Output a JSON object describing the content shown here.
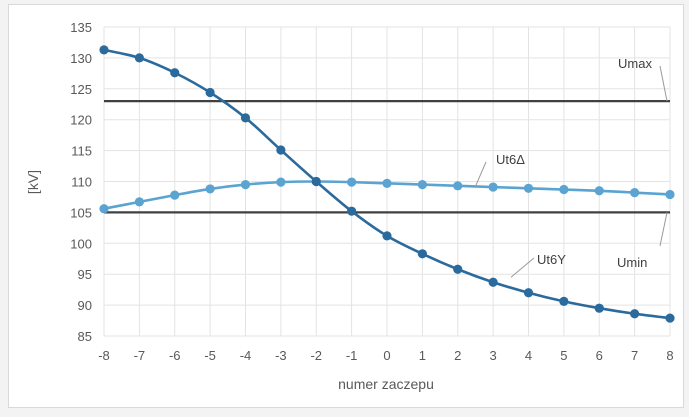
{
  "chart_data": {
    "type": "line",
    "title": "",
    "xlabel": "numer zaczepu",
    "ylabel": "[kV]",
    "x": [
      -8,
      -7,
      -6,
      -5,
      -4,
      -3,
      -2,
      -1,
      0,
      1,
      2,
      3,
      4,
      5,
      6,
      7,
      8
    ],
    "xlim": [
      -8,
      8
    ],
    "ylim": [
      85,
      135
    ],
    "yticks": [
      85,
      90,
      95,
      100,
      105,
      110,
      115,
      120,
      125,
      130,
      135
    ],
    "grid": true,
    "series": [
      {
        "name": "Ut6Δ",
        "color": "#5ba3d0",
        "values": [
          105.6,
          106.7,
          107.8,
          108.8,
          109.5,
          109.9,
          110.0,
          109.9,
          109.7,
          109.5,
          109.3,
          109.1,
          108.9,
          108.7,
          108.5,
          108.2,
          107.9
        ]
      },
      {
        "name": "Ut6Y",
        "color": "#2a6a9c",
        "values": [
          131.3,
          130.0,
          127.6,
          124.4,
          120.3,
          115.1,
          110.0,
          105.2,
          101.2,
          98.3,
          95.8,
          93.7,
          92.0,
          90.6,
          89.5,
          88.6,
          87.9
        ]
      }
    ],
    "reference_lines": [
      {
        "name": "Umax",
        "value": 123,
        "color": "#404040"
      },
      {
        "name": "Umin",
        "value": 105,
        "color": "#404040"
      }
    ]
  }
}
